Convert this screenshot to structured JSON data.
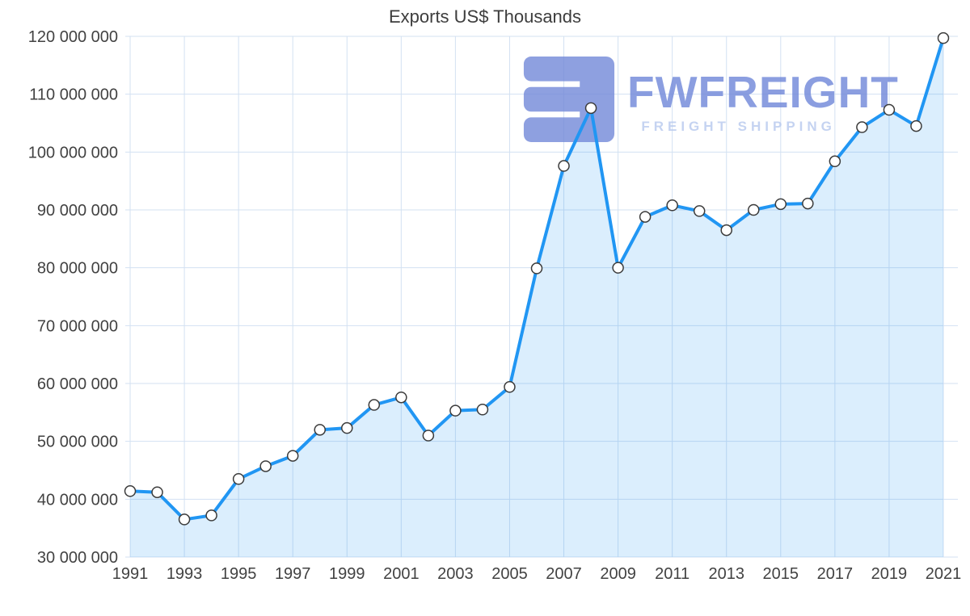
{
  "title": "Exports US$ Thousands",
  "watermark": {
    "brand": "FWFREIGHT",
    "tagline": "FREIGHT SHIPPING",
    "logo_icon": "fwfreight-container-logo",
    "color": "#6f87d9",
    "tagline_color": "#b7c9ee"
  },
  "chart_data": {
    "type": "area",
    "title": "Exports US$ Thousands",
    "xlabel": "",
    "ylabel": "",
    "x": [
      1991,
      1992,
      1993,
      1994,
      1995,
      1996,
      1997,
      1998,
      1999,
      2000,
      2001,
      2002,
      2003,
      2004,
      2005,
      2006,
      2007,
      2008,
      2009,
      2010,
      2011,
      2012,
      2013,
      2014,
      2015,
      2016,
      2017,
      2018,
      2019,
      2020,
      2021
    ],
    "series": [
      {
        "name": "Exports US$ Thousands",
        "values": [
          41400000,
          41200000,
          36500000,
          37200000,
          43500000,
          45700000,
          47500000,
          52000000,
          52300000,
          56300000,
          57600000,
          51000000,
          55300000,
          55500000,
          59400000,
          79900000,
          97600000,
          107600000,
          80000000,
          88800000,
          90800000,
          89800000,
          86500000,
          90000000,
          91000000,
          91100000,
          98400000,
          104300000,
          107300000,
          104500000,
          119700000
        ]
      }
    ],
    "ylim": [
      30000000,
      120000000
    ],
    "ytick_step": 10000000,
    "yticks": [
      30000000,
      40000000,
      50000000,
      60000000,
      70000000,
      80000000,
      90000000,
      100000000,
      110000000,
      120000000
    ],
    "ytick_labels": [
      "30 000 000",
      "40 000 000",
      "50 000 000",
      "60 000 000",
      "70 000 000",
      "80 000 000",
      "90 000 000",
      "100 000 000",
      "110 000 000",
      "120 000 000"
    ],
    "xticks": [
      1991,
      1993,
      1995,
      1997,
      1999,
      2001,
      2003,
      2005,
      2007,
      2009,
      2011,
      2013,
      2015,
      2017,
      2019,
      2021
    ],
    "grid": true,
    "legend": false,
    "marker": "circle",
    "colors": {
      "line": "#2196f3",
      "fill": "rgba(33, 150, 243, 0.16)",
      "marker_fill": "#ffffff",
      "marker_border": "#3b3b3b",
      "grid": "#d3e1f2",
      "axis_text": "#424242",
      "title_text": "#3d3d3d"
    }
  }
}
